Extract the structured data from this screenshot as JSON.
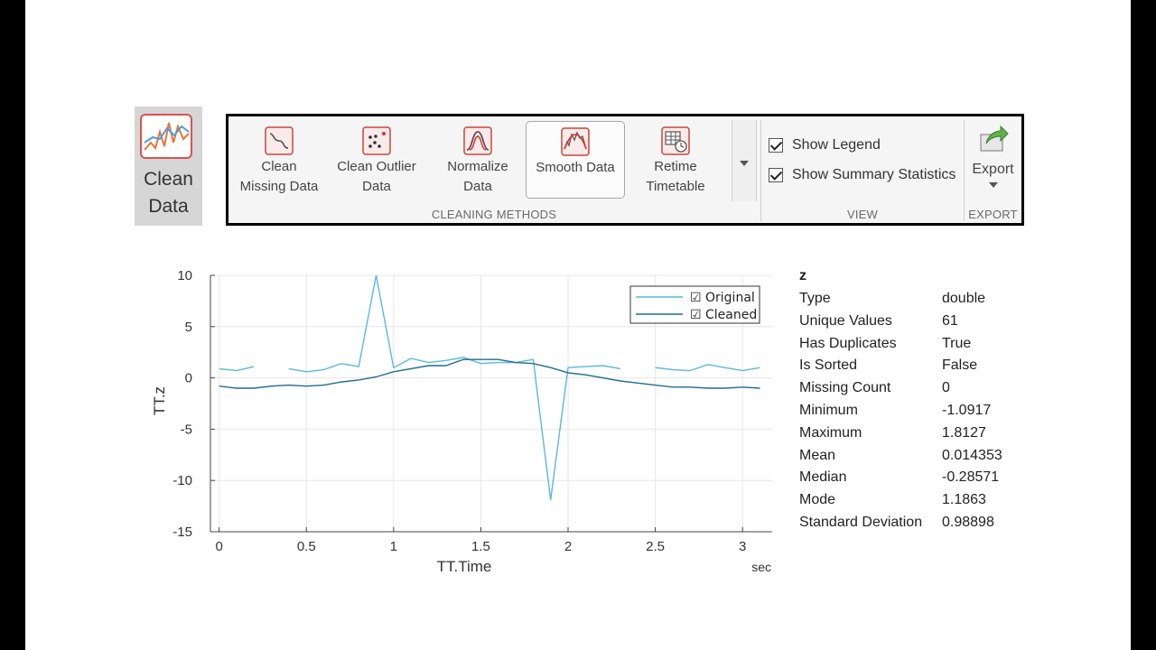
{
  "app_tile": {
    "label_line1": "Clean",
    "label_line2": "Data"
  },
  "toolstrip": {
    "cleaning_methods": {
      "title": "CLEANING METHODS",
      "buttons": [
        {
          "line1": "Clean",
          "line2": "Missing Data",
          "icon": "clean-missing-icon"
        },
        {
          "line1": "Clean Outlier",
          "line2": "Data",
          "icon": "clean-outlier-icon"
        },
        {
          "line1": "Normalize",
          "line2": "Data",
          "icon": "normalize-icon"
        },
        {
          "line1": "Smooth Data",
          "line2": "",
          "icon": "smooth-icon",
          "selected": true
        },
        {
          "line1": "Retime",
          "line2": "Timetable",
          "icon": "retime-icon"
        }
      ]
    },
    "view": {
      "title": "VIEW",
      "show_legend": "Show Legend",
      "show_summary": "Show Summary Statistics"
    },
    "export": {
      "title": "EXPORT",
      "label": "Export"
    }
  },
  "chart_data": {
    "type": "line",
    "xlabel": "TT.Time",
    "xunit": "sec",
    "ylabel": "TT.z",
    "xlim": [
      -0.05,
      3.17
    ],
    "ylim": [
      -15,
      10
    ],
    "xticks": [
      0,
      0.5,
      1,
      1.5,
      2,
      2.5,
      3
    ],
    "yticks": [
      10,
      5,
      0,
      -5,
      -10,
      -15
    ],
    "grid": true,
    "legend_position": "top-right",
    "series": [
      {
        "name": "☑ Original",
        "color": "#5bb8d9",
        "segments": [
          [
            [
              0,
              0.9
            ],
            [
              0.1,
              0.7
            ],
            [
              0.2,
              1.1
            ]
          ],
          [
            [
              0.4,
              0.9
            ],
            [
              0.5,
              0.6
            ],
            [
              0.6,
              0.8
            ],
            [
              0.7,
              1.4
            ],
            [
              0.8,
              1.1
            ],
            [
              0.9,
              10
            ],
            [
              1.0,
              1.0
            ],
            [
              1.1,
              1.9
            ],
            [
              1.2,
              1.5
            ],
            [
              1.3,
              1.7
            ],
            [
              1.4,
              2.0
            ],
            [
              1.5,
              1.4
            ],
            [
              1.6,
              1.5
            ],
            [
              1.7,
              1.5
            ],
            [
              1.8,
              1.8
            ],
            [
              1.9,
              -11.9
            ],
            [
              2.0,
              1.0
            ],
            [
              2.1,
              1.1
            ],
            [
              2.2,
              1.2
            ],
            [
              2.3,
              0.9
            ]
          ],
          [
            [
              2.5,
              1.0
            ],
            [
              2.6,
              0.8
            ],
            [
              2.7,
              0.7
            ],
            [
              2.8,
              1.3
            ],
            [
              2.9,
              1.0
            ],
            [
              3.0,
              0.7
            ],
            [
              3.1,
              1.0
            ]
          ]
        ]
      },
      {
        "name": "☑ Cleaned",
        "color": "#1f6d8f",
        "segments": [
          [
            [
              0,
              -0.8
            ],
            [
              0.1,
              -1.0
            ],
            [
              0.2,
              -1.0
            ],
            [
              0.3,
              -0.8
            ],
            [
              0.4,
              -0.7
            ],
            [
              0.5,
              -0.8
            ],
            [
              0.6,
              -0.7
            ],
            [
              0.7,
              -0.4
            ],
            [
              0.8,
              -0.2
            ],
            [
              0.9,
              0.1
            ],
            [
              1.0,
              0.6
            ],
            [
              1.1,
              0.9
            ],
            [
              1.2,
              1.2
            ],
            [
              1.3,
              1.2
            ],
            [
              1.4,
              1.8
            ],
            [
              1.5,
              1.8
            ],
            [
              1.6,
              1.8
            ],
            [
              1.7,
              1.5
            ],
            [
              1.8,
              1.4
            ],
            [
              1.9,
              1.0
            ],
            [
              2.0,
              0.5
            ],
            [
              2.1,
              0.3
            ],
            [
              2.2,
              0.0
            ],
            [
              2.3,
              -0.3
            ],
            [
              2.4,
              -0.5
            ],
            [
              2.5,
              -0.7
            ],
            [
              2.6,
              -0.9
            ],
            [
              2.7,
              -0.9
            ],
            [
              2.8,
              -1.0
            ],
            [
              2.9,
              -1.0
            ],
            [
              3.0,
              -0.9
            ],
            [
              3.1,
              -1.0
            ]
          ]
        ]
      }
    ]
  },
  "summary": {
    "variable": "z",
    "rows": [
      {
        "k": "Type",
        "v": "double"
      },
      {
        "k": "Unique Values",
        "v": "61"
      },
      {
        "k": "Has Duplicates",
        "v": "True"
      },
      {
        "k": "Is Sorted",
        "v": "False"
      },
      {
        "k": "Missing Count",
        "v": "0"
      },
      {
        "k": "Minimum",
        "v": "-1.0917"
      },
      {
        "k": "Maximum",
        "v": "1.8127"
      },
      {
        "k": "Mean",
        "v": "0.014353"
      },
      {
        "k": "Median",
        "v": "-0.28571"
      },
      {
        "k": "Mode",
        "v": "1.1863"
      },
      {
        "k": "Standard Deviation",
        "v": "0.98898"
      }
    ]
  }
}
